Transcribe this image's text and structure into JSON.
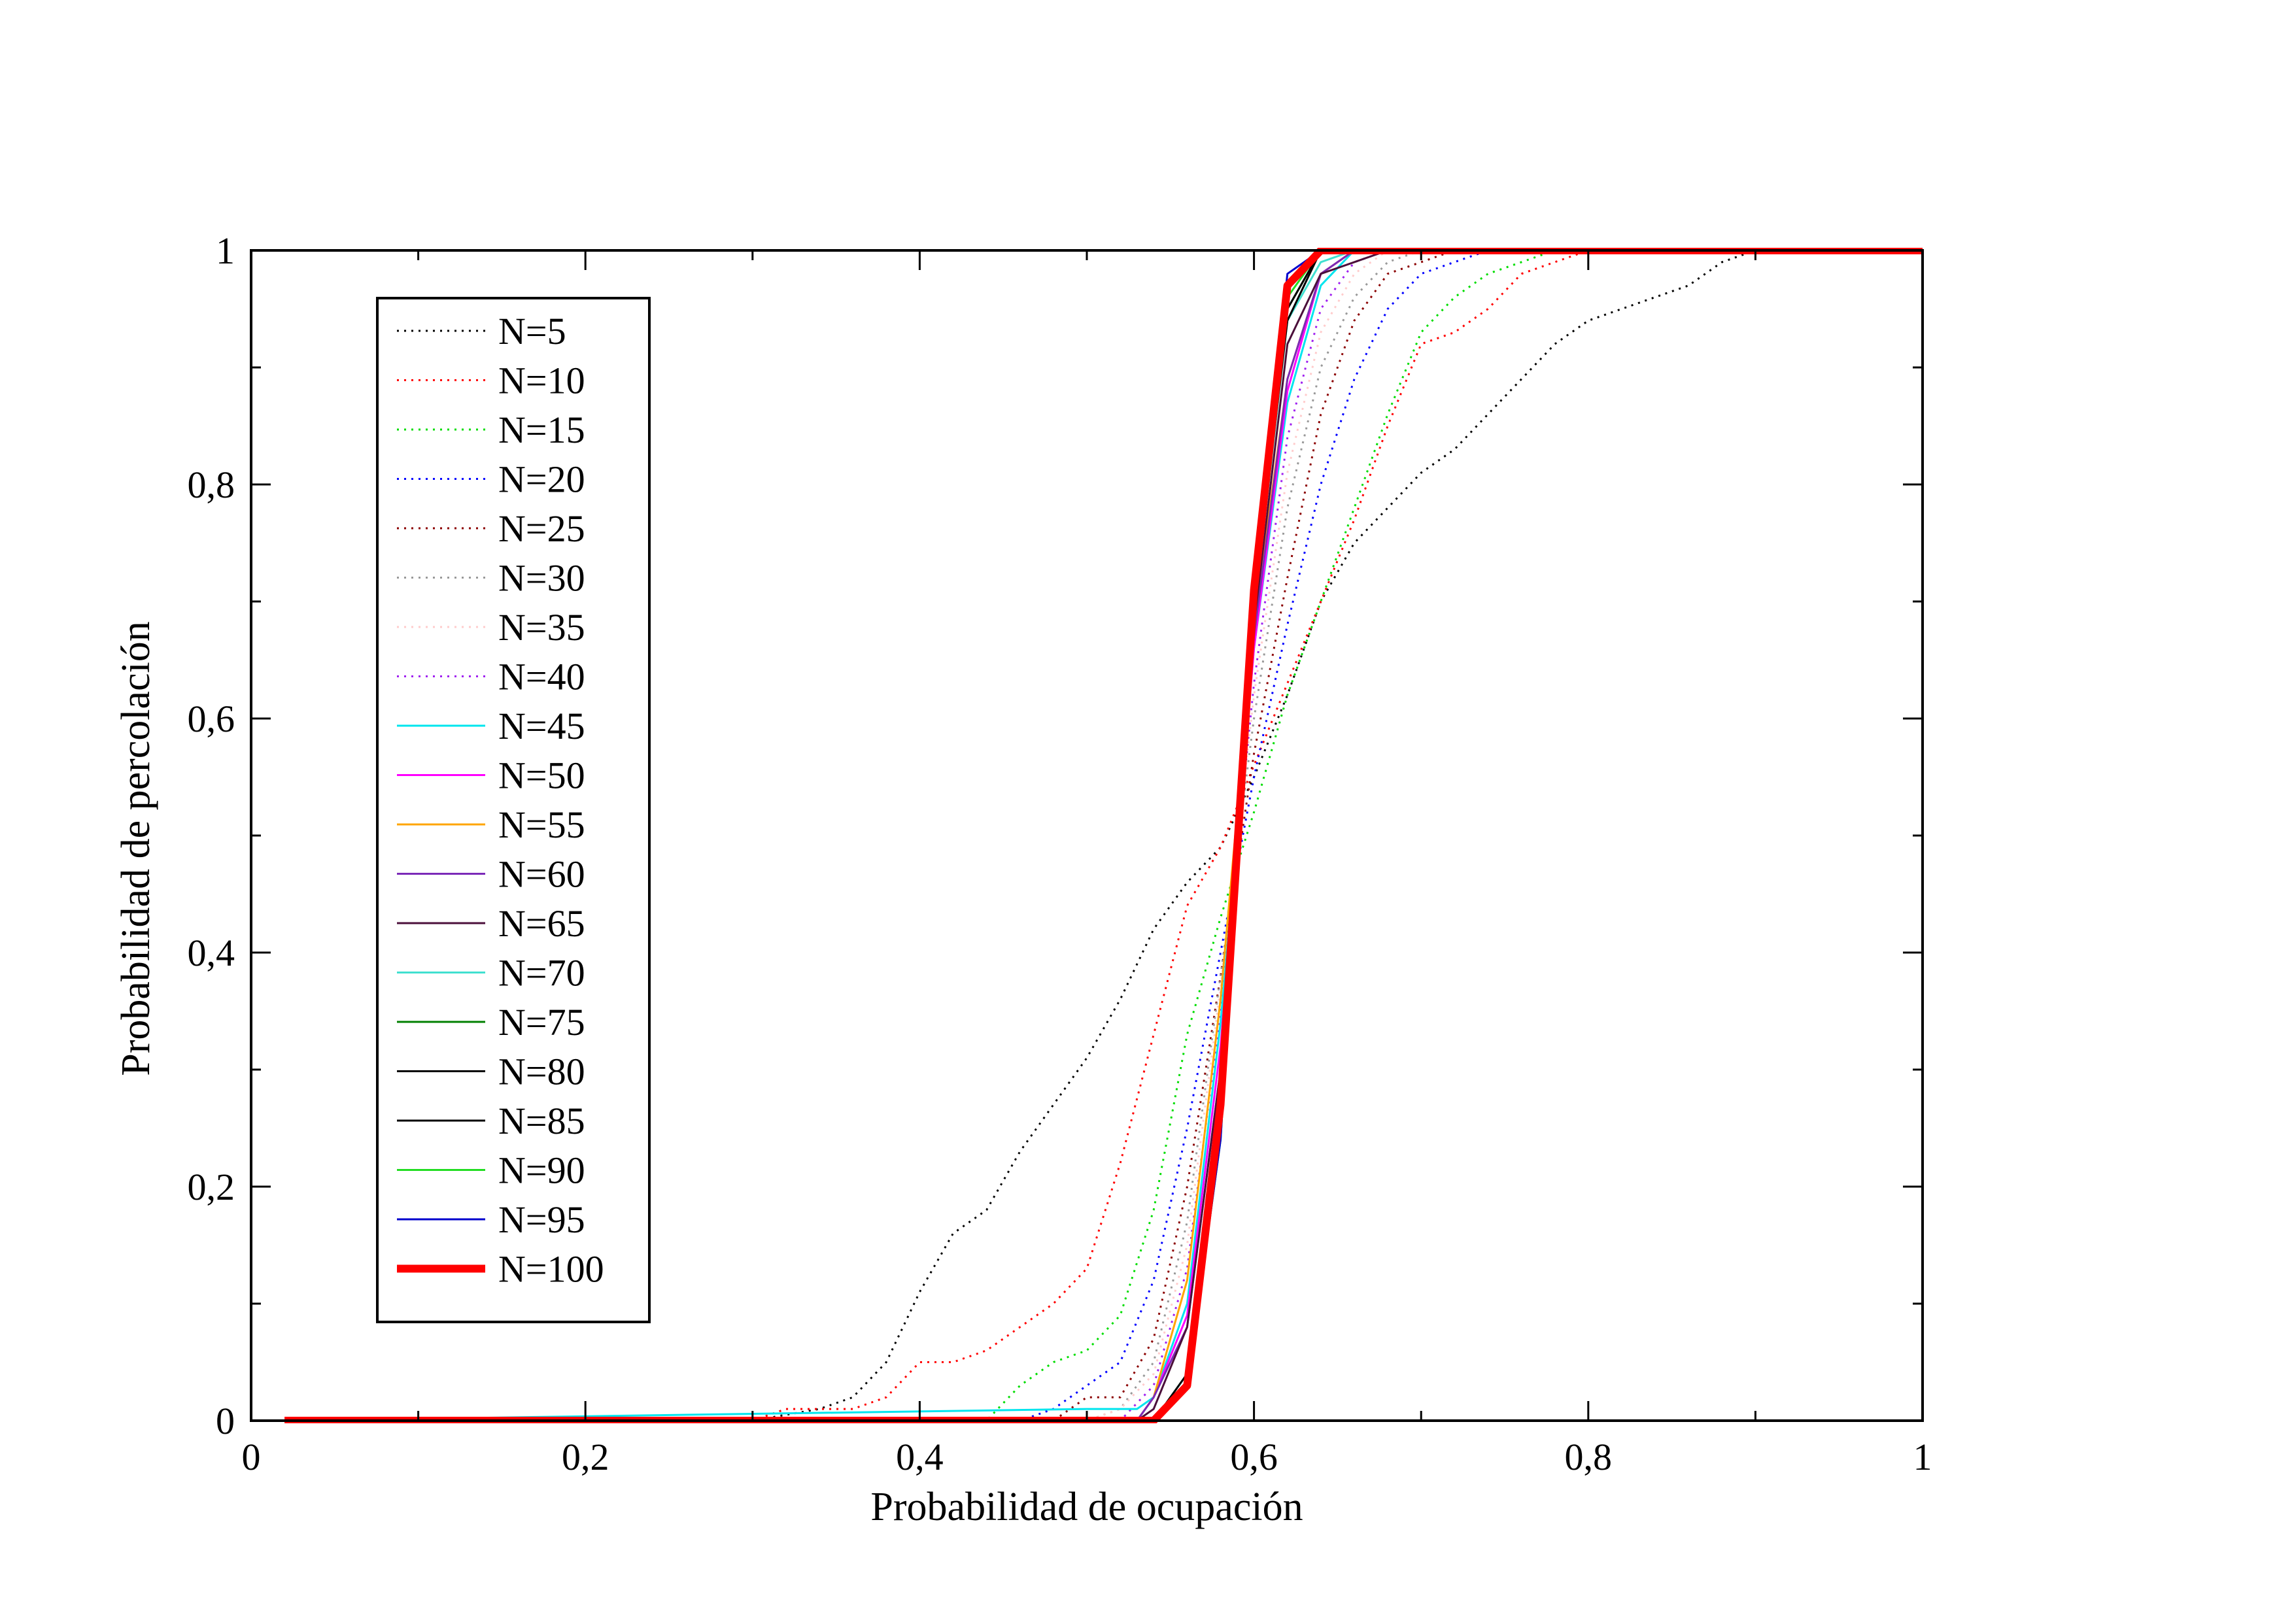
{
  "chart_data": {
    "type": "line",
    "title": "",
    "xlabel": "Probabilidad de ocupación",
    "ylabel": "Probabilidad de percolación",
    "xlim": [
      0,
      1
    ],
    "ylim": [
      0,
      1
    ],
    "x_ticks": [
      0,
      0.2,
      0.4,
      0.6,
      0.8,
      1
    ],
    "x_tick_labels": [
      "0",
      "0,2",
      "0,4",
      "0,6",
      "0,8",
      "1"
    ],
    "y_ticks": [
      0,
      0.2,
      0.4,
      0.6,
      0.8,
      1
    ],
    "y_tick_labels": [
      "0",
      "0,2",
      "0,4",
      "0,6",
      "0,8",
      "1"
    ],
    "x_minor_step": 0.1,
    "y_minor_step": 0.1,
    "grid": false,
    "legend_position": "top-left",
    "series": [
      {
        "name": "N=5",
        "color": "#000000",
        "dash": "dotted",
        "width": 3,
        "x": [
          0.02,
          0.3,
          0.34,
          0.36,
          0.38,
          0.4,
          0.42,
          0.44,
          0.46,
          0.48,
          0.5,
          0.52,
          0.54,
          0.56,
          0.58,
          0.6,
          0.62,
          0.64,
          0.66,
          0.68,
          0.7,
          0.72,
          0.74,
          0.76,
          0.78,
          0.8,
          0.82,
          0.84,
          0.86,
          0.88,
          0.9,
          1.0
        ],
        "y": [
          0,
          0,
          0.01,
          0.02,
          0.05,
          0.11,
          0.16,
          0.18,
          0.23,
          0.27,
          0.31,
          0.36,
          0.42,
          0.46,
          0.49,
          0.55,
          0.62,
          0.7,
          0.75,
          0.78,
          0.81,
          0.83,
          0.86,
          0.89,
          0.92,
          0.94,
          0.95,
          0.96,
          0.97,
          0.99,
          1.0,
          1.0
        ]
      },
      {
        "name": "N=10",
        "color": "#ff0000",
        "dash": "dotted",
        "width": 3,
        "x": [
          0.02,
          0.3,
          0.32,
          0.36,
          0.38,
          0.4,
          0.42,
          0.44,
          0.46,
          0.48,
          0.5,
          0.52,
          0.54,
          0.56,
          0.58,
          0.6,
          0.62,
          0.64,
          0.66,
          0.68,
          0.7,
          0.72,
          0.74,
          0.76,
          0.78,
          0.8,
          1.0
        ],
        "y": [
          0,
          0,
          0.01,
          0.01,
          0.02,
          0.05,
          0.05,
          0.06,
          0.08,
          0.1,
          0.13,
          0.22,
          0.33,
          0.44,
          0.49,
          0.56,
          0.63,
          0.7,
          0.77,
          0.85,
          0.92,
          0.93,
          0.95,
          0.98,
          0.99,
          1.0,
          1.0
        ]
      },
      {
        "name": "N=15",
        "color": "#00dd00",
        "dash": "dotted",
        "width": 3,
        "x": [
          0.02,
          0.44,
          0.46,
          0.48,
          0.5,
          0.52,
          0.54,
          0.56,
          0.58,
          0.6,
          0.62,
          0.64,
          0.66,
          0.68,
          0.7,
          0.72,
          0.74,
          0.76,
          0.78,
          1.0
        ],
        "y": [
          0,
          0,
          0.03,
          0.05,
          0.06,
          0.09,
          0.18,
          0.33,
          0.43,
          0.52,
          0.62,
          0.7,
          0.78,
          0.86,
          0.93,
          0.96,
          0.98,
          0.99,
          1.0,
          1.0
        ]
      },
      {
        "name": "N=20",
        "color": "#0000ff",
        "dash": "dotted",
        "width": 3,
        "x": [
          0.02,
          0.46,
          0.48,
          0.5,
          0.52,
          0.54,
          0.56,
          0.58,
          0.6,
          0.62,
          0.64,
          0.66,
          0.68,
          0.7,
          0.72,
          0.74,
          1.0
        ],
        "y": [
          0,
          0,
          0.01,
          0.03,
          0.05,
          0.12,
          0.25,
          0.4,
          0.55,
          0.68,
          0.8,
          0.89,
          0.95,
          0.98,
          0.99,
          1.0,
          1.0
        ]
      },
      {
        "name": "N=25",
        "color": "#8b0000",
        "dash": "dotted",
        "width": 3,
        "x": [
          0.02,
          0.48,
          0.5,
          0.52,
          0.54,
          0.56,
          0.58,
          0.6,
          0.62,
          0.64,
          0.66,
          0.68,
          0.7,
          0.72,
          1.0
        ],
        "y": [
          0,
          0,
          0.02,
          0.02,
          0.07,
          0.2,
          0.38,
          0.57,
          0.72,
          0.86,
          0.94,
          0.98,
          0.99,
          1.0,
          1.0
        ]
      },
      {
        "name": "N=30",
        "color": "#999999",
        "dash": "dotted",
        "width": 3,
        "x": [
          0.02,
          0.5,
          0.52,
          0.54,
          0.56,
          0.58,
          0.6,
          0.62,
          0.64,
          0.66,
          0.68,
          0.7,
          1.0
        ],
        "y": [
          0,
          0,
          0.01,
          0.05,
          0.17,
          0.38,
          0.6,
          0.78,
          0.9,
          0.96,
          0.99,
          1.0,
          1.0
        ]
      },
      {
        "name": "N=35",
        "color": "#ffcccc",
        "dash": "dotted",
        "width": 3,
        "x": [
          0.02,
          0.5,
          0.52,
          0.54,
          0.56,
          0.58,
          0.6,
          0.62,
          0.64,
          0.66,
          0.68,
          1.0
        ],
        "y": [
          0,
          0,
          0.01,
          0.04,
          0.15,
          0.37,
          0.62,
          0.81,
          0.93,
          0.98,
          1.0,
          1.0
        ]
      },
      {
        "name": "N=40",
        "color": "#a020f0",
        "dash": "dotted",
        "width": 3,
        "x": [
          0.02,
          0.52,
          0.54,
          0.56,
          0.58,
          0.6,
          0.62,
          0.64,
          0.66,
          0.68,
          1.0
        ],
        "y": [
          0,
          0,
          0.03,
          0.13,
          0.35,
          0.63,
          0.84,
          0.95,
          0.99,
          1.0,
          1.0
        ]
      },
      {
        "name": "N=45",
        "color": "#00e5ee",
        "dash": "solid",
        "width": 3,
        "x": [
          0.02,
          0.5,
          0.53,
          0.54,
          0.56,
          0.58,
          0.6,
          0.62,
          0.64,
          0.66,
          1.0
        ],
        "y": [
          0,
          0.01,
          0.01,
          0.02,
          0.1,
          0.34,
          0.66,
          0.87,
          0.97,
          1.0,
          1.0
        ]
      },
      {
        "name": "N=50",
        "color": "#ff00ff",
        "dash": "solid",
        "width": 3,
        "x": [
          0.02,
          0.53,
          0.54,
          0.56,
          0.58,
          0.6,
          0.62,
          0.64,
          0.66,
          1.0
        ],
        "y": [
          0,
          0,
          0.02,
          0.09,
          0.32,
          0.66,
          0.88,
          0.98,
          1.0,
          1.0
        ]
      },
      {
        "name": "N=55",
        "color": "#ffa500",
        "dash": "solid",
        "width": 3,
        "x": [
          0.02,
          0.53,
          0.54,
          0.56,
          0.58,
          0.6,
          0.62,
          0.64,
          0.66,
          1.0
        ],
        "y": [
          0,
          0,
          0.02,
          0.12,
          0.36,
          0.68,
          0.89,
          0.98,
          1.0,
          1.0
        ]
      },
      {
        "name": "N=60",
        "color": "#7b2ab8",
        "dash": "solid",
        "width": 3,
        "x": [
          0.02,
          0.53,
          0.54,
          0.56,
          0.58,
          0.6,
          0.62,
          0.64,
          0.66,
          1.0
        ],
        "y": [
          0,
          0,
          0.02,
          0.08,
          0.3,
          0.67,
          0.89,
          0.98,
          1.0,
          1.0
        ]
      },
      {
        "name": "N=65",
        "color": "#4b0f3a",
        "dash": "solid",
        "width": 3,
        "x": [
          0.02,
          0.53,
          0.54,
          0.56,
          0.58,
          0.6,
          0.62,
          0.64,
          0.66,
          0.68,
          1.0
        ],
        "y": [
          0,
          0,
          0.01,
          0.08,
          0.3,
          0.68,
          0.92,
          0.98,
          0.99,
          1.0,
          1.0
        ]
      },
      {
        "name": "N=70",
        "color": "#40e0d0",
        "dash": "solid",
        "width": 3,
        "x": [
          0.02,
          0.54,
          0.56,
          0.58,
          0.6,
          0.62,
          0.64,
          0.66,
          1.0
        ],
        "y": [
          0,
          0,
          0.04,
          0.26,
          0.69,
          0.94,
          0.99,
          1.0,
          1.0
        ]
      },
      {
        "name": "N=75",
        "color": "#008000",
        "dash": "solid",
        "width": 3,
        "x": [
          0.02,
          0.54,
          0.56,
          0.58,
          0.6,
          0.62,
          0.64,
          1.0
        ],
        "y": [
          0,
          0,
          0.03,
          0.25,
          0.7,
          0.95,
          1.0,
          1.0
        ]
      },
      {
        "name": "N=80",
        "color": "#000000",
        "dash": "solid",
        "width": 3,
        "x": [
          0.02,
          0.54,
          0.56,
          0.58,
          0.6,
          0.62,
          0.64,
          1.0
        ],
        "y": [
          0,
          0,
          0.04,
          0.27,
          0.7,
          0.94,
          1.0,
          1.0
        ]
      },
      {
        "name": "N=85",
        "color": "#000000",
        "dash": "solid",
        "width": 3,
        "x": [
          0.02,
          0.54,
          0.56,
          0.58,
          0.6,
          0.62,
          0.64,
          1.0
        ],
        "y": [
          0,
          0,
          0.03,
          0.26,
          0.71,
          0.95,
          1.0,
          1.0
        ]
      },
      {
        "name": "N=90",
        "color": "#22dd22",
        "dash": "solid",
        "width": 3,
        "x": [
          0.02,
          0.54,
          0.56,
          0.58,
          0.6,
          0.62,
          0.64,
          1.0
        ],
        "y": [
          0,
          0,
          0.03,
          0.24,
          0.7,
          0.96,
          1.0,
          1.0
        ]
      },
      {
        "name": "N=95",
        "color": "#0000cd",
        "dash": "solid",
        "width": 3,
        "x": [
          0.02,
          0.54,
          0.56,
          0.58,
          0.6,
          0.62,
          0.64,
          1.0
        ],
        "y": [
          0,
          0,
          0.03,
          0.24,
          0.71,
          0.98,
          1.0,
          1.0
        ]
      },
      {
        "name": "N=100",
        "color": "#ff0000",
        "dash": "solid",
        "width": 12,
        "x": [
          0.02,
          0.54,
          0.56,
          0.58,
          0.6,
          0.62,
          0.64,
          1.0
        ],
        "y": [
          0,
          0,
          0.03,
          0.27,
          0.71,
          0.97,
          1.0,
          1.0
        ]
      }
    ]
  }
}
